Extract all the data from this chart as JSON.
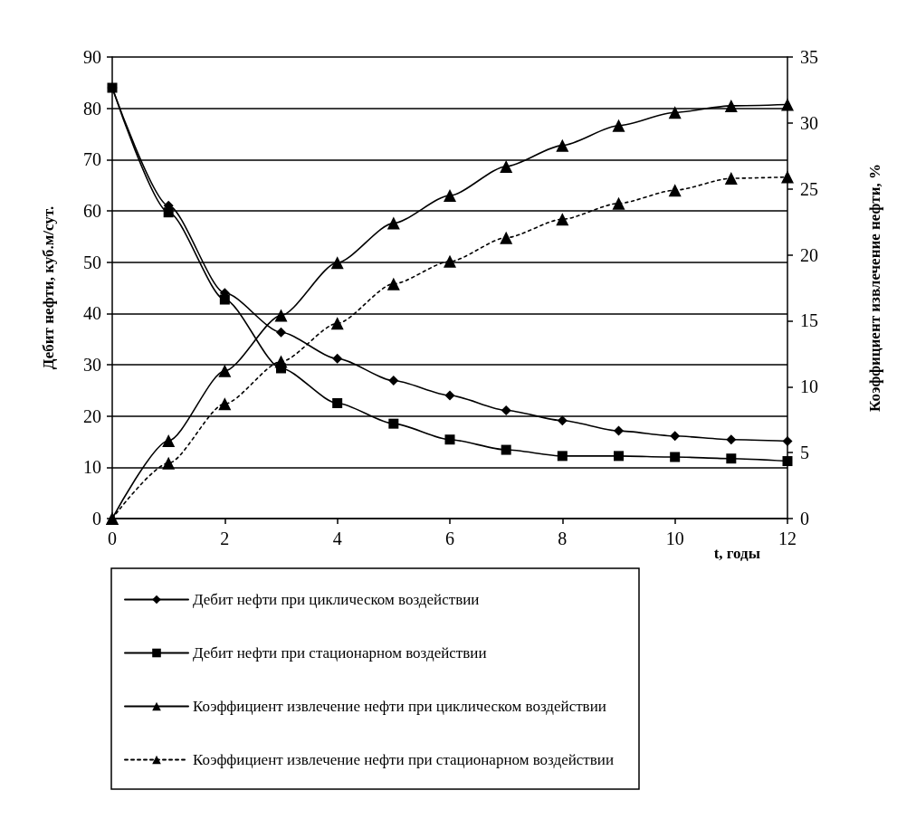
{
  "chart_data": {
    "type": "line",
    "xlabel": "t, годы",
    "ylabel": "Дебит нефти, куб.м/сут.",
    "y2label": "Коэффициент извлечение нефти, %",
    "x": [
      0,
      1,
      2,
      3,
      4,
      5,
      6,
      7,
      8,
      9,
      10,
      11,
      12
    ],
    "series": [
      {
        "name": "Дебит нефти при циклическом воздействии",
        "color": "#000000",
        "marker": "diamond",
        "line_style": "solid",
        "values": [
          84,
          61,
          44,
          36.3,
          31.2,
          26.9,
          24,
          21.1,
          19.1,
          17.1,
          16.1,
          15.4,
          15.1
        ]
      },
      {
        "name": "Дебит нефти при стационарном воздействии",
        "color": "#000000",
        "marker": "square",
        "line_style": "solid",
        "values": [
          84,
          59.7,
          42.7,
          29.3,
          22.5,
          18.5,
          15.4,
          13.4,
          12.2,
          12.2,
          12,
          11.7,
          11.2
        ]
      },
      {
        "name": "Коэффициент извлечение нефти при циклическом воздействии",
        "color": "#000000",
        "marker": "triangle",
        "line_style": "solid",
        "axis": "y2",
        "values": [
          0,
          5.9,
          11.2,
          15.4,
          19.4,
          22.4,
          24.5,
          26.7,
          28.3,
          29.8,
          30.8,
          31.3,
          31.4
        ]
      },
      {
        "name": "Коэффициент извлечение нефти при стационарном воздействии",
        "color": "#000000",
        "marker": "triangle",
        "line_style": "dashed",
        "axis": "y2",
        "values": [
          0,
          4.2,
          8.7,
          11.9,
          14.8,
          17.8,
          19.5,
          21.3,
          22.7,
          23.9,
          24.9,
          25.8,
          25.9
        ]
      }
    ],
    "xlim": [
      0,
      12
    ],
    "xticks": [
      0,
      2,
      4,
      6,
      8,
      10,
      12
    ],
    "ylim": [
      0,
      90
    ],
    "yticks": [
      0,
      10,
      20,
      30,
      40,
      50,
      60,
      70,
      80,
      90
    ],
    "y2lim": [
      0,
      35
    ],
    "y2ticks": [
      0,
      5,
      10,
      15,
      20,
      25,
      30,
      35
    ],
    "grid": "y",
    "legend": "bottom"
  }
}
